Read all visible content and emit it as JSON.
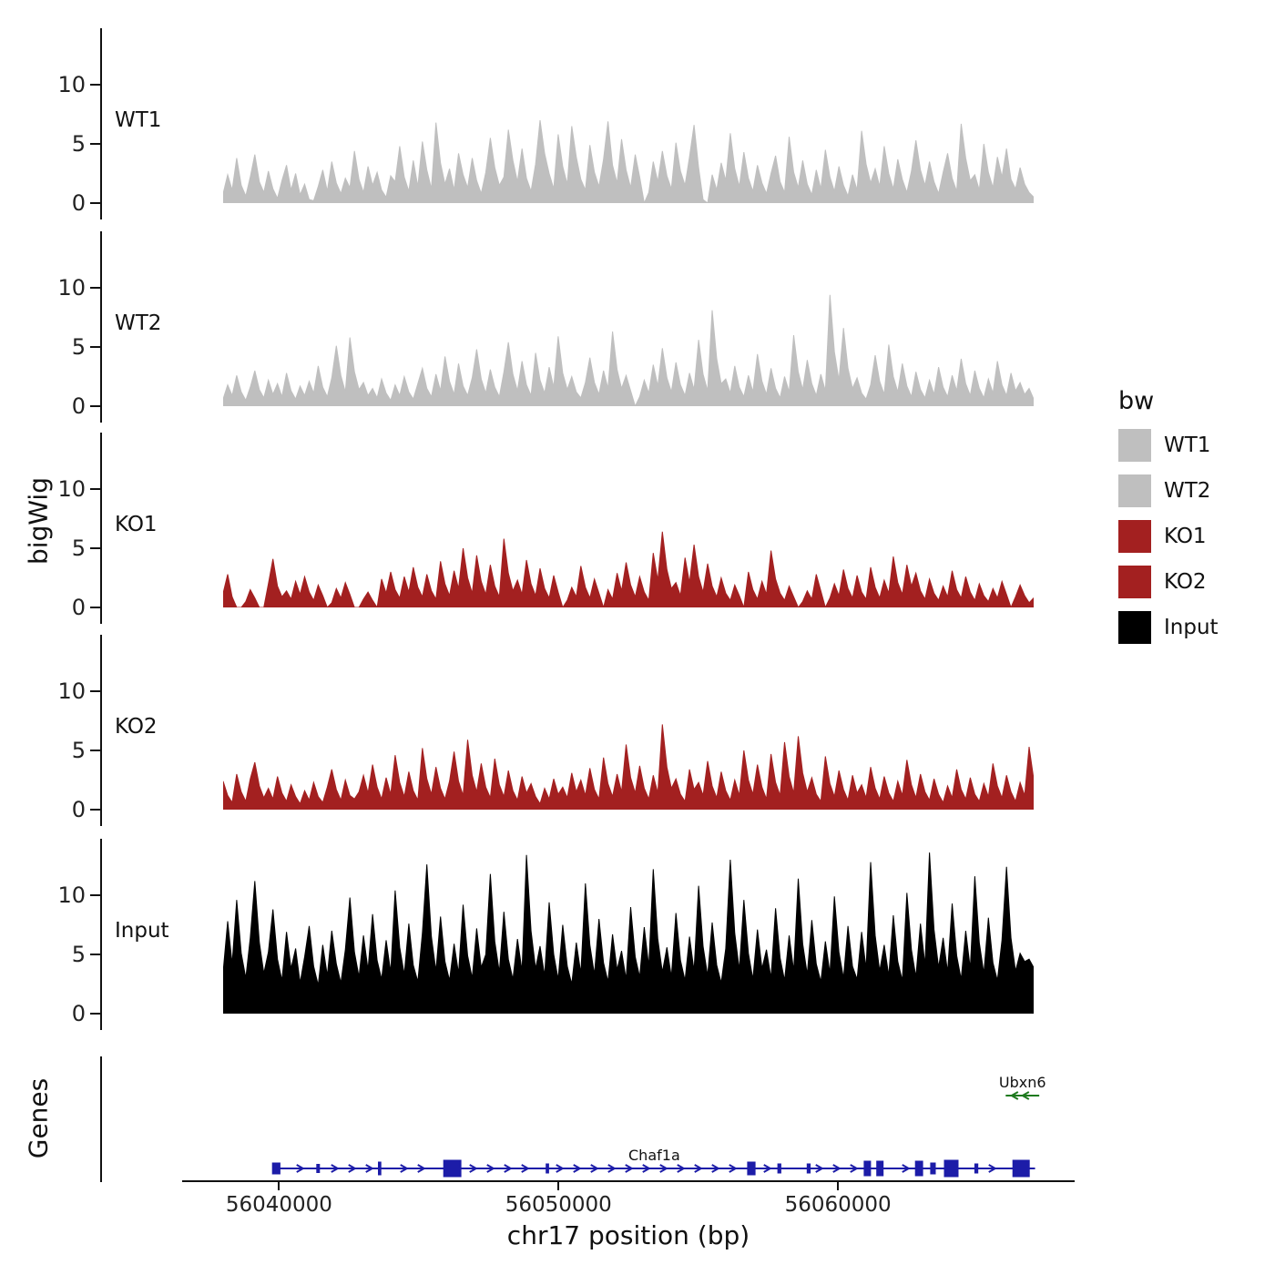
{
  "figure": {
    "y_axis_label": "bigWig",
    "genes_axis_label": "Genes",
    "x_axis_label": "chr17 position (bp)",
    "x_ticks": [
      {
        "bp": 56040000,
        "label": "56040000"
      },
      {
        "bp": 56050000,
        "label": "56050000"
      },
      {
        "bp": 56060000,
        "label": "56060000"
      }
    ]
  },
  "legend": {
    "title": "bw",
    "entries": [
      {
        "label": "WT1",
        "color": "#BFBFBF"
      },
      {
        "label": "WT2",
        "color": "#BFBFBF"
      },
      {
        "label": "KO1",
        "color": "#A32020"
      },
      {
        "label": "KO2",
        "color": "#A32020"
      },
      {
        "label": "Input",
        "color": "#000000"
      }
    ]
  },
  "chart_data": {
    "type": "area",
    "title": "",
    "xlabel": "chr17 position (bp)",
    "ylabel": "bigWig",
    "x_range_bp": [
      56038000,
      56067000
    ],
    "y_ticks": [
      0,
      5,
      10
    ],
    "ylim_per_track": [
      0,
      14
    ],
    "grid": false,
    "legend_position": "right",
    "tracks": [
      {
        "name": "WT1",
        "color": "#BFBFBF",
        "values": [
          0.8,
          2.4,
          1.1,
          3.8,
          1.5,
          0.6,
          2.2,
          4.1,
          1.8,
          0.9,
          2.7,
          1.2,
          0.4,
          1.9,
          3.2,
          1.1,
          2.5,
          0.7,
          1.6,
          0.3,
          0.2,
          1.4,
          2.8,
          1.0,
          3.5,
          1.7,
          0.8,
          2.1,
          1.3,
          4.4,
          2.0,
          0.9,
          3.1,
          1.5,
          2.6,
          1.1,
          0.5,
          2.3,
          1.8,
          4.8,
          2.2,
          1.0,
          3.6,
          1.4,
          5.2,
          2.8,
          1.2,
          6.8,
          3.4,
          1.6,
          2.9,
          1.1,
          4.2,
          2.4,
          1.3,
          3.8,
          1.9,
          0.8,
          2.6,
          5.5,
          3.0,
          1.5,
          2.2,
          6.2,
          3.6,
          1.8,
          4.6,
          2.1,
          1.0,
          3.3,
          7.0,
          4.2,
          2.5,
          1.2,
          5.8,
          3.1,
          1.6,
          6.5,
          3.9,
          2.0,
          1.1,
          4.9,
          2.6,
          1.4,
          3.7,
          6.9,
          3.2,
          1.7,
          5.4,
          2.8,
          1.3,
          4.1,
          2.2,
          0.0,
          0.9,
          3.5,
          1.8,
          4.4,
          2.3,
          1.2,
          5.1,
          2.7,
          1.5,
          3.9,
          6.6,
          3.0,
          0.3,
          0.0,
          2.4,
          1.1,
          3.4,
          1.9,
          5.9,
          2.9,
          1.4,
          4.3,
          2.1,
          1.0,
          3.2,
          1.7,
          0.8,
          2.5,
          4.0,
          1.8,
          0.9,
          5.6,
          2.6,
          1.3,
          3.6,
          1.6,
          0.7,
          2.8,
          1.2,
          4.5,
          2.2,
          1.0,
          3.1,
          1.5,
          0.6,
          2.4,
          1.1,
          6.1,
          3.3,
          1.7,
          2.9,
          1.4,
          4.8,
          2.5,
          1.2,
          3.7,
          2.0,
          0.9,
          2.7,
          5.3,
          2.8,
          1.5,
          3.5,
          1.8,
          0.8,
          2.6,
          4.2,
          2.1,
          1.0,
          6.7,
          3.8,
          1.9,
          2.4,
          1.1,
          5.0,
          2.6,
          1.3,
          3.9,
          2.2,
          4.6,
          2.0,
          1.2,
          3.0,
          1.6,
          0.9,
          0.5
        ]
      },
      {
        "name": "WT2",
        "color": "#BFBFBF",
        "values": [
          0.6,
          1.8,
          0.9,
          2.6,
          1.2,
          0.5,
          1.6,
          3.0,
          1.4,
          0.7,
          2.2,
          1.0,
          1.9,
          0.8,
          2.8,
          1.3,
          0.6,
          1.7,
          0.9,
          2.1,
          1.1,
          3.4,
          1.6,
          0.8,
          2.4,
          5.1,
          2.6,
          1.2,
          5.8,
          2.9,
          1.4,
          2.0,
          0.9,
          1.5,
          0.7,
          2.3,
          1.1,
          0.5,
          1.8,
          0.9,
          2.5,
          1.2,
          0.6,
          1.9,
          3.2,
          1.5,
          0.8,
          2.7,
          1.3,
          4.2,
          2.1,
          1.0,
          3.6,
          1.7,
          0.9,
          2.4,
          4.8,
          2.3,
          1.1,
          3.1,
          1.6,
          0.8,
          2.9,
          5.4,
          2.7,
          1.3,
          3.8,
          1.8,
          0.9,
          4.5,
          2.2,
          1.1,
          3.3,
          1.6,
          5.9,
          2.8,
          1.4,
          2.5,
          1.2,
          0.7,
          2.0,
          4.1,
          2.0,
          1.0,
          3.0,
          1.5,
          6.3,
          3.1,
          1.5,
          2.6,
          1.3,
          0.0,
          0.8,
          2.2,
          1.1,
          3.5,
          1.7,
          4.9,
          2.4,
          1.2,
          3.7,
          1.8,
          0.9,
          2.8,
          1.4,
          5.6,
          2.7,
          1.3,
          8.1,
          4.0,
          1.9,
          2.3,
          1.1,
          3.4,
          1.6,
          0.8,
          2.6,
          1.2,
          4.4,
          2.1,
          1.0,
          3.2,
          1.5,
          0.7,
          2.5,
          1.2,
          6.0,
          2.9,
          1.4,
          3.9,
          1.9,
          0.9,
          2.7,
          1.3,
          9.4,
          4.6,
          2.2,
          6.6,
          3.2,
          1.5,
          2.4,
          1.1,
          0.6,
          1.8,
          4.3,
          2.1,
          1.0,
          5.2,
          2.5,
          1.2,
          3.6,
          1.7,
          0.8,
          2.9,
          1.4,
          0.7,
          2.2,
          1.0,
          3.3,
          1.6,
          0.8,
          2.6,
          1.3,
          4.0,
          1.9,
          0.9,
          3.0,
          1.5,
          0.7,
          2.3,
          1.1,
          3.8,
          1.8,
          0.9,
          2.8,
          1.3,
          2.0,
          1.0,
          1.5,
          0.6
        ]
      },
      {
        "name": "KO1",
        "color": "#A32020",
        "values": [
          1.2,
          2.8,
          0.9,
          0.0,
          0.0,
          0.5,
          1.5,
          0.8,
          0.0,
          0.0,
          2.0,
          4.1,
          1.8,
          0.9,
          1.4,
          0.7,
          2.2,
          1.1,
          2.6,
          1.3,
          0.6,
          1.9,
          1.0,
          0.0,
          0.4,
          1.6,
          0.8,
          2.1,
          1.1,
          0.0,
          0.0,
          0.7,
          1.3,
          0.6,
          0.0,
          2.4,
          1.2,
          3.0,
          1.5,
          0.8,
          2.6,
          1.3,
          3.4,
          1.7,
          0.9,
          2.8,
          1.4,
          0.7,
          3.9,
          2.0,
          1.0,
          3.1,
          1.6,
          5.0,
          2.5,
          1.2,
          4.4,
          2.2,
          1.1,
          3.6,
          1.8,
          0.9,
          5.8,
          2.9,
          1.4,
          2.3,
          1.1,
          4.0,
          2.0,
          1.0,
          3.3,
          1.6,
          0.8,
          2.7,
          1.3,
          0.0,
          0.6,
          1.7,
          0.9,
          3.5,
          1.7,
          0.8,
          2.4,
          1.2,
          0.0,
          1.5,
          0.7,
          2.9,
          1.4,
          3.8,
          1.9,
          0.9,
          2.6,
          1.3,
          0.6,
          4.6,
          2.3,
          6.4,
          3.2,
          1.6,
          2.1,
          1.0,
          4.2,
          2.1,
          5.3,
          2.6,
          1.3,
          3.7,
          1.8,
          0.9,
          2.5,
          1.2,
          0.6,
          1.9,
          1.0,
          0.0,
          3.0,
          1.5,
          0.7,
          2.2,
          1.1,
          4.8,
          2.4,
          1.2,
          0.6,
          1.8,
          0.9,
          0.0,
          0.5,
          1.4,
          0.7,
          2.8,
          1.4,
          0.0,
          0.8,
          2.0,
          1.0,
          3.2,
          1.6,
          0.8,
          2.7,
          1.3,
          0.7,
          3.4,
          1.7,
          0.8,
          2.3,
          1.2,
          4.3,
          2.1,
          1.1,
          3.6,
          1.8,
          2.9,
          1.4,
          0.7,
          2.4,
          1.2,
          0.6,
          1.8,
          0.9,
          3.1,
          1.5,
          0.8,
          2.6,
          1.3,
          0.6,
          2.0,
          1.0,
          0.5,
          1.6,
          0.8,
          2.2,
          1.1,
          0.0,
          0.9,
          1.9,
          1.0,
          0.4,
          0.8
        ]
      },
      {
        "name": "KO2",
        "color": "#A32020",
        "values": [
          2.4,
          1.2,
          0.6,
          3.0,
          1.5,
          0.7,
          2.6,
          4.0,
          2.0,
          1.0,
          1.8,
          0.9,
          2.8,
          1.4,
          0.7,
          2.1,
          1.1,
          0.5,
          1.6,
          0.8,
          2.3,
          1.1,
          0.6,
          1.9,
          3.4,
          1.7,
          0.8,
          2.5,
          1.2,
          0.9,
          1.5,
          2.9,
          1.4,
          3.8,
          1.9,
          0.9,
          2.7,
          1.3,
          4.6,
          2.3,
          1.1,
          3.2,
          1.6,
          0.8,
          5.2,
          2.6,
          1.3,
          3.6,
          1.8,
          0.9,
          2.4,
          4.9,
          2.4,
          1.2,
          5.9,
          2.9,
          1.5,
          3.9,
          1.9,
          1.0,
          4.3,
          2.1,
          1.1,
          3.3,
          1.6,
          0.8,
          2.8,
          1.4,
          2.2,
          1.1,
          0.5,
          1.8,
          0.9,
          2.6,
          1.3,
          1.9,
          1.0,
          3.1,
          1.5,
          2.5,
          1.2,
          3.5,
          1.7,
          0.9,
          4.4,
          2.2,
          1.1,
          3.0,
          1.5,
          5.5,
          2.7,
          1.4,
          3.7,
          1.8,
          0.9,
          2.9,
          1.4,
          7.2,
          3.6,
          1.8,
          2.6,
          1.3,
          0.7,
          3.4,
          1.7,
          2.3,
          1.2,
          4.1,
          2.0,
          1.0,
          3.2,
          1.6,
          0.8,
          2.5,
          1.2,
          5.0,
          2.5,
          1.3,
          3.8,
          1.9,
          0.9,
          4.7,
          2.3,
          1.2,
          5.7,
          2.8,
          1.4,
          6.2,
          3.1,
          1.5,
          2.7,
          1.3,
          0.7,
          4.5,
          2.2,
          1.1,
          3.3,
          1.7,
          0.8,
          2.9,
          1.4,
          2.1,
          1.0,
          3.6,
          1.8,
          0.9,
          2.8,
          1.4,
          0.7,
          2.4,
          1.2,
          4.2,
          2.1,
          1.0,
          3.0,
          1.5,
          0.8,
          2.6,
          1.3,
          0.6,
          2.0,
          1.0,
          3.4,
          1.7,
          0.9,
          2.7,
          1.3,
          0.7,
          2.2,
          1.1,
          3.9,
          2.0,
          1.0,
          2.9,
          1.5,
          0.7,
          2.3,
          1.2,
          5.3,
          2.6
        ]
      },
      {
        "name": "Input",
        "color": "#000000",
        "values": [
          3.5,
          7.8,
          4.2,
          9.6,
          5.1,
          3.0,
          6.4,
          11.2,
          6.0,
          3.4,
          5.2,
          8.8,
          4.6,
          2.8,
          6.9,
          3.8,
          5.5,
          2.6,
          4.8,
          7.4,
          4.0,
          2.4,
          5.8,
          3.2,
          7.0,
          4.2,
          2.6,
          5.4,
          9.8,
          5.2,
          3.1,
          6.6,
          3.7,
          8.4,
          4.5,
          2.9,
          6.2,
          3.5,
          10.4,
          5.6,
          3.3,
          7.6,
          4.1,
          2.7,
          6.8,
          12.6,
          6.5,
          3.6,
          8.2,
          4.4,
          2.8,
          5.9,
          3.4,
          9.2,
          4.9,
          3.0,
          7.2,
          3.9,
          5.0,
          11.8,
          6.1,
          3.5,
          8.6,
          4.6,
          2.9,
          6.3,
          3.6,
          13.4,
          7.0,
          3.8,
          5.7,
          3.2,
          9.4,
          5.0,
          2.9,
          7.5,
          4.0,
          2.5,
          6.0,
          3.4,
          11.0,
          5.8,
          3.3,
          8.0,
          4.3,
          2.7,
          6.7,
          3.7,
          5.3,
          2.9,
          9.0,
          4.8,
          3.1,
          7.3,
          4.0,
          12.2,
          6.3,
          3.5,
          5.6,
          3.1,
          8.5,
          4.5,
          2.8,
          6.5,
          3.6,
          10.8,
          5.7,
          3.2,
          7.7,
          4.1,
          2.6,
          5.5,
          13.0,
          6.8,
          3.7,
          9.6,
          5.1,
          2.9,
          7.1,
          3.8,
          5.4,
          3.0,
          8.9,
          4.7,
          2.8,
          6.6,
          3.6,
          11.4,
          5.9,
          3.3,
          7.9,
          4.2,
          2.7,
          6.1,
          3.4,
          9.9,
          5.2,
          3.0,
          7.4,
          4.0,
          2.9,
          6.9,
          3.8,
          12.8,
          6.6,
          3.6,
          5.8,
          3.2,
          8.3,
          4.4,
          2.8,
          10.2,
          5.4,
          3.1,
          7.6,
          4.1,
          13.6,
          7.1,
          3.9,
          6.4,
          3.5,
          9.3,
          4.9,
          2.9,
          7.0,
          3.8,
          11.6,
          6.0,
          3.4,
          8.1,
          4.3,
          2.8,
          6.2,
          12.4,
          6.4,
          3.6,
          5.1,
          4.4,
          4.6,
          3.9
        ]
      }
    ]
  },
  "genes_track": {
    "label": "Genes",
    "genes": [
      {
        "name": "Ubxn6",
        "strand": "-",
        "color": "#1e7a1e",
        "row": 0,
        "start_bp": 56066000,
        "end_bp": 56067200,
        "exons": []
      },
      {
        "name": "Chaf1a",
        "strand": "+",
        "color": "#1c1ca8",
        "row": 1,
        "start_bp": 56039800,
        "end_bp": 56067050,
        "exons": [
          {
            "bp": 56039900,
            "w_bp": 300,
            "h": 13
          },
          {
            "bp": 56041400,
            "w_bp": 130,
            "h": 10
          },
          {
            "bp": 56043600,
            "w_bp": 120,
            "h": 15
          },
          {
            "bp": 56046200,
            "w_bp": 650,
            "h": 19
          },
          {
            "bp": 56049600,
            "w_bp": 120,
            "h": 11
          },
          {
            "bp": 56056900,
            "w_bp": 300,
            "h": 15
          },
          {
            "bp": 56057900,
            "w_bp": 140,
            "h": 11
          },
          {
            "bp": 56058950,
            "w_bp": 140,
            "h": 11
          },
          {
            "bp": 56061050,
            "w_bp": 260,
            "h": 17
          },
          {
            "bp": 56061500,
            "w_bp": 260,
            "h": 17
          },
          {
            "bp": 56062900,
            "w_bp": 290,
            "h": 17
          },
          {
            "bp": 56063400,
            "w_bp": 200,
            "h": 13
          },
          {
            "bp": 56064050,
            "w_bp": 520,
            "h": 19
          },
          {
            "bp": 56064950,
            "w_bp": 140,
            "h": 11
          },
          {
            "bp": 56066550,
            "w_bp": 620,
            "h": 19
          }
        ]
      }
    ]
  }
}
